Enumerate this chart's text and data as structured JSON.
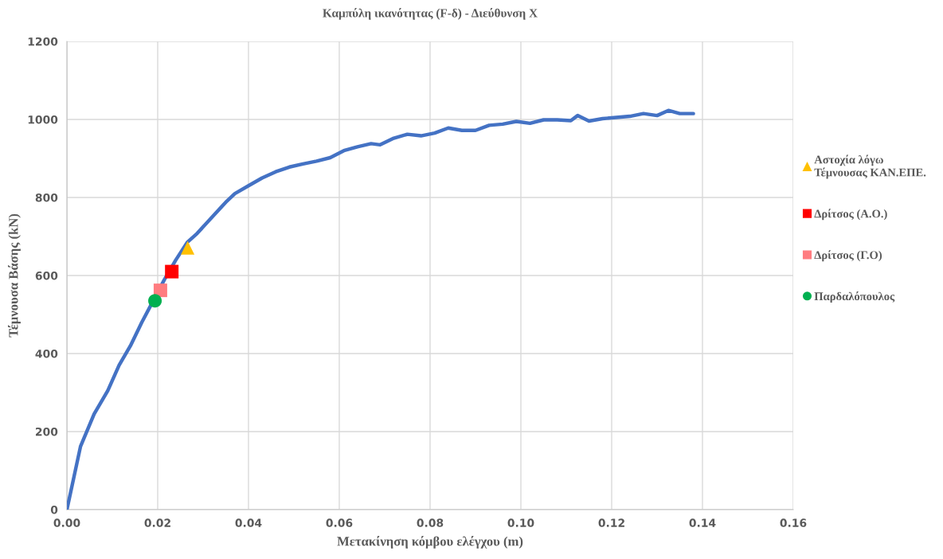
{
  "chart_data": {
    "type": "line",
    "title": "Καμπύλη ικανότητας (F-δ) - Διεύθυνση X",
    "xlabel": "Μετακίνηση κόμβου ελέγχου (m)",
    "ylabel": "Τέμνουσα Βάσης (kN)",
    "xlim": [
      0,
      0.16
    ],
    "xticks": [
      {
        "value": 0,
        "label": "0.00"
      },
      {
        "value": 0.02,
        "label": "0.02"
      },
      {
        "value": 0.04,
        "label": "0.04"
      },
      {
        "value": 0.06,
        "label": "0.06"
      },
      {
        "value": 0.08,
        "label": "0.08"
      },
      {
        "value": 0.1,
        "label": "0.10"
      },
      {
        "value": 0.12,
        "label": "0.12"
      },
      {
        "value": 0.14,
        "label": "0.14"
      },
      {
        "value": 0.16,
        "label": "0.16"
      }
    ],
    "ylim": [
      0,
      1200
    ],
    "yticks": [
      0,
      200,
      400,
      600,
      800,
      1000,
      1200
    ],
    "grid": true,
    "legend": "right",
    "series": [
      {
        "color": "#4472c4",
        "marker": "none",
        "x": [
          0,
          0.003,
          0.006,
          0.009,
          0.0115,
          0.014,
          0.0165,
          0.019,
          0.0215,
          0.024,
          0.0265,
          0.0287,
          0.032,
          0.035,
          0.037,
          0.04,
          0.043,
          0.046,
          0.049,
          0.052,
          0.055,
          0.058,
          0.061,
          0.064,
          0.067,
          0.069,
          0.072,
          0.075,
          0.078,
          0.081,
          0.084,
          0.087,
          0.09,
          0.093,
          0.096,
          0.099,
          0.102,
          0.105,
          0.108,
          0.111,
          0.1125,
          0.115,
          0.118,
          0.121,
          0.124,
          0.127,
          0.13,
          0.1325,
          0.135,
          0.138
        ],
        "values": [
          0,
          162,
          245,
          305,
          370,
          420,
          480,
          535,
          590,
          640,
          685,
          708,
          750,
          788,
          810,
          830,
          850,
          866,
          878,
          886,
          893,
          902,
          920,
          930,
          938,
          935,
          952,
          962,
          958,
          965,
          978,
          972,
          972,
          985,
          988,
          995,
          990,
          999,
          999,
          997,
          1010,
          996,
          1002,
          1005,
          1008,
          1015,
          1010,
          1023,
          1015,
          1015
        ]
      },
      {
        "type": "scatter",
        "name": "Αστοχία λόγω\nΤέμνουσας ΚΑΝ.ΕΠΕ.",
        "color": "#ffc000",
        "marker": "triangle",
        "x": [
          0.0266
        ],
        "values": [
          671
        ]
      },
      {
        "type": "scatter",
        "name": "Δρίτσος (Α.Ο.)",
        "color": "#ff0000",
        "marker": "square",
        "x": [
          0.0231
        ],
        "values": [
          610
        ]
      },
      {
        "type": "scatter",
        "name": "Δρίτσος (Γ.Ο)",
        "color": "#ff7c80",
        "marker": "square",
        "x": [
          0.0206
        ],
        "values": [
          562
        ]
      },
      {
        "type": "scatter",
        "name": "Παρδαλόπουλος",
        "color": "#00b050",
        "marker": "circle",
        "x": [
          0.0194
        ],
        "values": [
          535
        ]
      }
    ]
  }
}
